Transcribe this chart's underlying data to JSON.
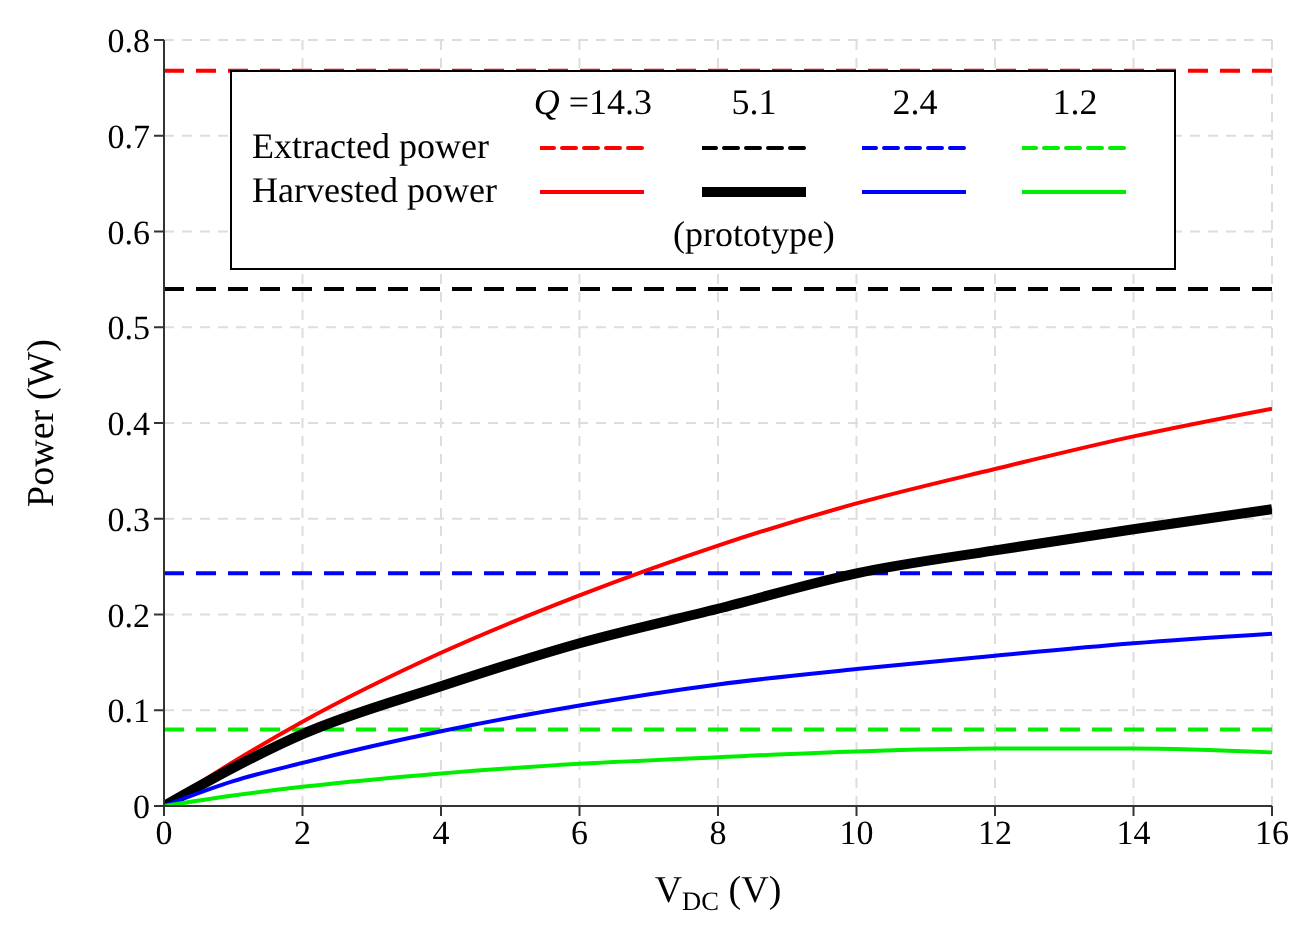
{
  "chart_data": {
    "type": "line",
    "xlabel": "V$_{DC}$ (V)",
    "ylabel": "Power (W)",
    "legend_title": "Q =",
    "annotations": [
      "14.3",
      "5.1",
      "2.4",
      "1.2",
      "(prototype)"
    ],
    "x": [
      0,
      1,
      2,
      4,
      6,
      8,
      10,
      12,
      14,
      16
    ],
    "xlim": [
      0,
      16
    ],
    "xticks": [
      0,
      2,
      4,
      6,
      8,
      10,
      12,
      14,
      16
    ],
    "ylim": [
      0,
      0.8
    ],
    "yticks": [
      0,
      0.1,
      0.2,
      0.3,
      0.4,
      0.5,
      0.6,
      0.7,
      0.8
    ],
    "grid": true,
    "legend": "top",
    "marker": "none",
    "series": [
      {
        "name": "Extracted power",
        "color": "#ff0000",
        "line_style": "dashed",
        "values": [
          0.768,
          0.768,
          0.768,
          0.768,
          0.768,
          0.768,
          0.768,
          0.768,
          0.768,
          0.768
        ]
      },
      {
        "color": "#000000",
        "line_style": "dashed",
        "values": [
          0.54,
          0.54,
          0.54,
          0.54,
          0.54,
          0.54,
          0.54,
          0.54,
          0.54,
          0.54
        ]
      },
      {
        "color": "#0000ff",
        "line_style": "dashed",
        "values": [
          0.243,
          0.243,
          0.243,
          0.243,
          0.243,
          0.243,
          0.243,
          0.243,
          0.243,
          0.243
        ]
      },
      {
        "color": "#00ee00",
        "line_style": "dashed",
        "values": [
          0.08,
          0.08,
          0.08,
          0.08,
          0.08,
          0.08,
          0.08,
          0.08,
          0.08,
          0.08
        ]
      },
      {
        "name": "Harvested power",
        "color": "#ff0000",
        "line_style": "solid",
        "values": [
          0,
          0.046,
          0.088,
          0.16,
          0.22,
          0.272,
          0.316,
          0.352,
          0.386,
          0.415
        ]
      },
      {
        "color": "#000000",
        "line_style": "solid",
        "values": [
          0,
          0.04,
          0.075,
          0.125,
          0.17,
          0.206,
          0.243,
          0.267,
          0.289,
          0.31
        ]
      },
      {
        "color": "#0000ff",
        "line_style": "solid",
        "values": [
          0,
          0.026,
          0.045,
          0.078,
          0.105,
          0.127,
          0.143,
          0.157,
          0.17,
          0.18
        ]
      },
      {
        "color": "#00ee00",
        "line_style": "solid",
        "values": [
          0,
          0.011,
          0.02,
          0.034,
          0.044,
          0.051,
          0.057,
          0.06,
          0.06,
          0.056
        ]
      }
    ]
  }
}
